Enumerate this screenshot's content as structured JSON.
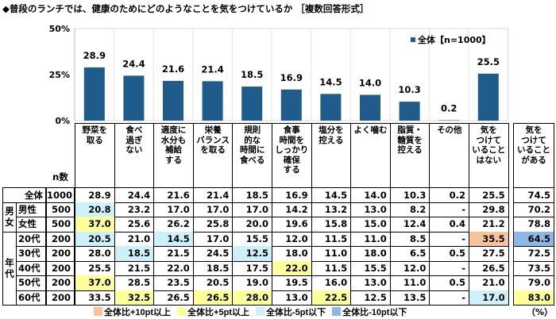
{
  "title": "◆普段のランチでは、健康のためにどのようなことを気をつけているか ［複数回答形式］",
  "chart_data": {
    "type": "bar",
    "categories": [
      "野菜を取る",
      "食べ過ぎない",
      "適度に水分も補給する",
      "栄養バランスを取る",
      "規則的な時間に食べる",
      "食事時間をしっかり確保する",
      "塩分を控える",
      "よく噛む",
      "脂質・糖質を控える",
      "その他",
      "気をつけていることはない"
    ],
    "series": [
      {
        "name": "全体【n=1000】",
        "values": [
          28.9,
          24.4,
          21.6,
          21.4,
          18.5,
          16.9,
          14.5,
          14.0,
          10.3,
          0.2,
          25.5
        ]
      }
    ],
    "value_labels": [
      "28.9",
      "24.4",
      "21.6",
      "21.4",
      "18.5",
      "16.9",
      "14.5",
      "14.0",
      "10.3",
      "0.2",
      "25.5"
    ],
    "yticks": [
      "0%",
      "25%",
      "50%"
    ],
    "ylim": [
      0,
      50
    ],
    "legend": "top-right",
    "grid": "vertical",
    "bar_color": "#1f5c8b"
  },
  "table": {
    "headers": [
      "野菜を\n取る",
      "食べ\n過ぎ\nない",
      "適度に\n水分も\n補給\nする",
      "栄養\nバランス\nを取る",
      "規則\n的な\n時間に\n食べる",
      "食事\n時間を\nしっかり\n確保\nする",
      "塩分を\n控える",
      "よく噛む",
      "脂質・\n糖質を\n控える",
      "その他",
      "気を\nつけて\nいること\nはない"
    ],
    "extra_header": "気を\nつけて\nいること\nがある",
    "n_label": "n数",
    "groups": [
      {
        "label": "男\n女",
        "start": 1,
        "span": 2
      },
      {
        "label": "年\n代",
        "start": 3,
        "span": 5
      }
    ],
    "rows": [
      {
        "label": "全体",
        "n": "1000",
        "values": [
          "28.9",
          "24.4",
          "21.6",
          "21.4",
          "18.5",
          "16.9",
          "14.5",
          "14.0",
          "10.3",
          "0.2",
          "25.5"
        ],
        "extra": "74.5",
        "marks": [],
        "extra_mark": ""
      },
      {
        "label": "男性",
        "n": "500",
        "values": [
          "20.8",
          "23.2",
          "17.0",
          "17.0",
          "17.0",
          "14.2",
          "13.2",
          "13.0",
          "8.2",
          "-",
          "29.8"
        ],
        "extra": "70.2",
        "marks": [
          [
            "0",
            "m5"
          ]
        ],
        "extra_mark": ""
      },
      {
        "label": "女性",
        "n": "500",
        "values": [
          "37.0",
          "25.6",
          "26.2",
          "25.8",
          "20.0",
          "19.6",
          "15.8",
          "15.0",
          "12.4",
          "0.4",
          "21.2"
        ],
        "extra": "78.8",
        "marks": [
          [
            "0",
            "p5"
          ]
        ],
        "extra_mark": ""
      },
      {
        "label": "20代",
        "n": "200",
        "values": [
          "20.5",
          "21.0",
          "14.5",
          "17.0",
          "15.5",
          "12.0",
          "11.5",
          "11.0",
          "8.5",
          "-",
          "35.5"
        ],
        "extra": "64.5",
        "marks": [
          [
            "0",
            "m5"
          ],
          [
            "2",
            "m5"
          ],
          [
            "10",
            "p10"
          ]
        ],
        "extra_mark": "m10"
      },
      {
        "label": "30代",
        "n": "200",
        "values": [
          "28.0",
          "18.5",
          "21.5",
          "24.5",
          "12.5",
          "18.0",
          "11.0",
          "18.0",
          "6.5",
          "0.5",
          "27.5"
        ],
        "extra": "72.5",
        "marks": [
          [
            "1",
            "m5"
          ],
          [
            "4",
            "m5"
          ]
        ],
        "extra_mark": ""
      },
      {
        "label": "40代",
        "n": "200",
        "values": [
          "25.5",
          "21.5",
          "22.0",
          "18.5",
          "17.5",
          "22.0",
          "11.5",
          "15.5",
          "12.0",
          "-",
          "26.5"
        ],
        "extra": "73.5",
        "marks": [
          [
            "5",
            "p5"
          ]
        ],
        "extra_mark": ""
      },
      {
        "label": "50代",
        "n": "200",
        "values": [
          "37.0",
          "28.5",
          "23.5",
          "20.5",
          "19.0",
          "19.5",
          "16.0",
          "13.0",
          "11.0",
          "0.5",
          "21.0"
        ],
        "extra": "79.0",
        "marks": [
          [
            "0",
            "p5"
          ]
        ],
        "extra_mark": ""
      },
      {
        "label": "60代",
        "n": "200",
        "values": [
          "33.5",
          "32.5",
          "26.5",
          "26.5",
          "28.0",
          "13.0",
          "22.5",
          "12.5",
          "13.5",
          "-",
          "17.0"
        ],
        "extra": "83.0",
        "marks": [
          [
            "1",
            "p5"
          ],
          [
            "3",
            "p5"
          ],
          [
            "4",
            "p5"
          ],
          [
            "6",
            "p5"
          ],
          [
            "10",
            "m5"
          ]
        ],
        "extra_mark": "p5"
      }
    ],
    "unit": "（%）"
  },
  "highlight_legend": [
    {
      "key": "p10",
      "label": "全体比+10pt以上",
      "color": "#f8c49a"
    },
    {
      "key": "p5",
      "label": "全体比+5pt以上",
      "color": "#ffff99"
    },
    {
      "key": "m5",
      "label": "全体比-5pt以下",
      "color": "#cdf1fb"
    },
    {
      "key": "m10",
      "label": "全体比-10pt以下",
      "color": "#8db7e6"
    }
  ]
}
